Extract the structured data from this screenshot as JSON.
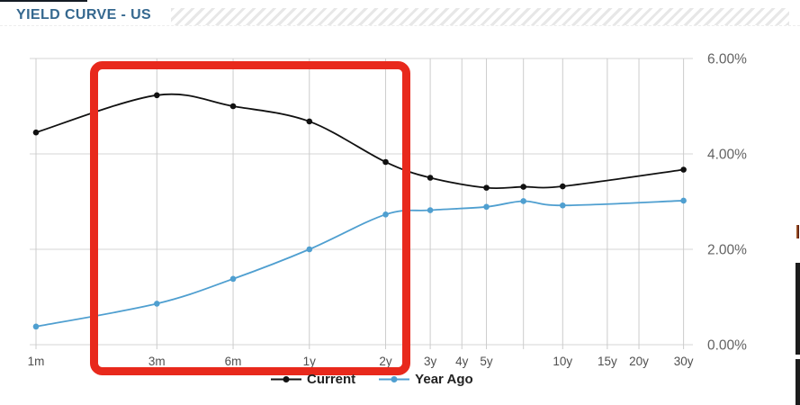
{
  "header": {
    "title": "YIELD CURVE - US"
  },
  "chart_data": {
    "type": "line",
    "title": "YIELD CURVE - US",
    "x_axis": {
      "scale": "log-maturity",
      "ticks": [
        {
          "label": "1m",
          "months": 1
        },
        {
          "label": "3m",
          "months": 3
        },
        {
          "label": "6m",
          "months": 6
        },
        {
          "label": "1y",
          "months": 12
        },
        {
          "label": "2y",
          "months": 24
        },
        {
          "label": "3y",
          "months": 36
        },
        {
          "label": "4y",
          "months": 48
        },
        {
          "label": "5y",
          "months": 60
        },
        {
          "label": "",
          "months": 84
        },
        {
          "label": "10y",
          "months": 120
        },
        {
          "label": "15y",
          "months": 180
        },
        {
          "label": "20y",
          "months": 240
        },
        {
          "label": "30y",
          "months": 360
        }
      ]
    },
    "y_axis": {
      "side": "right",
      "range": [
        0,
        6
      ],
      "ticks": [
        {
          "label": "0.00%",
          "value": 0
        },
        {
          "label": "2.00%",
          "value": 2
        },
        {
          "label": "4.00%",
          "value": 4
        },
        {
          "label": "6.00%",
          "value": 6
        }
      ]
    },
    "grid": true,
    "legend_position": "bottom-center",
    "series": [
      {
        "name": "Current",
        "color": "#111111",
        "marker": "circle",
        "points": [
          {
            "m": 1,
            "v": 4.45
          },
          {
            "m": 3,
            "v": 5.23
          },
          {
            "m": 6,
            "v": 5.0
          },
          {
            "m": 12,
            "v": 4.68
          },
          {
            "m": 24,
            "v": 3.83
          },
          {
            "m": 36,
            "v": 3.5
          },
          {
            "m": 60,
            "v": 3.29
          },
          {
            "m": 84,
            "v": 3.31
          },
          {
            "m": 120,
            "v": 3.32
          },
          {
            "m": 360,
            "v": 3.67
          }
        ]
      },
      {
        "name": "Year Ago",
        "color": "#4f9fd0",
        "marker": "circle",
        "points": [
          {
            "m": 1,
            "v": 0.38
          },
          {
            "m": 3,
            "v": 0.86
          },
          {
            "m": 6,
            "v": 1.38
          },
          {
            "m": 12,
            "v": 2.0
          },
          {
            "m": 24,
            "v": 2.73
          },
          {
            "m": 36,
            "v": 2.82
          },
          {
            "m": 60,
            "v": 2.89
          },
          {
            "m": 84,
            "v": 3.01
          },
          {
            "m": 120,
            "v": 2.92
          },
          {
            "m": 360,
            "v": 3.02
          }
        ]
      }
    ],
    "annotation": {
      "shape": "rounded-rectangle-highlight",
      "color": "#e8291c",
      "covers": "maturities ~3m to 2y, full plot height including x-axis labels"
    }
  },
  "decorations": {
    "title_color": "#35688f",
    "stripe_color": "#e7e7e7",
    "top_left_sliver_color": "#141b24",
    "right_edge_bars_color": "#1c1c1c",
    "right_edge_sliver_colors": [
      "#b96a33",
      "#4a0f08"
    ]
  }
}
